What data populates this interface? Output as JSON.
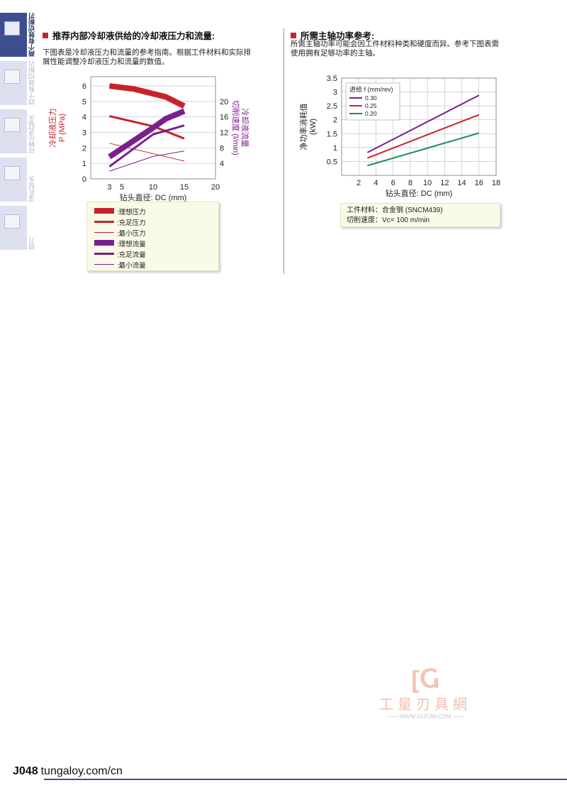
{
  "sidebar": {
    "tabs": [
      {
        "label": "两个有效切削刃钻头",
        "active": true
      },
      {
        "label": "四个有效切削刃钻头",
        "active": false
      },
      {
        "label": "可转位式钻头",
        "active": false
      },
      {
        "label": "深孔钻头",
        "active": false
      },
      {
        "label": "铰刀",
        "active": false
      }
    ]
  },
  "left_section": {
    "title": "推荐内部冷却液供给的冷却液压力和流量:",
    "desc_line1": "下图表是冷却液压力和流量的参考指南。根据工件材料和实际排",
    "desc_line2": "屑性能调整冷却液压力和流量的数值。"
  },
  "right_section": {
    "title": "所需主轴功率参考:",
    "desc_line1": "所需主轴功率可能会因工件材料种类和硬度而异。参考下图表需",
    "desc_line2": "使用拥有足够功率的主轴。",
    "note_line1": "工件材料：合金钢 (SNCM439)",
    "note_line2": "切削速度：Vc= 100 m/min"
  },
  "colors": {
    "red": "#c8232c",
    "purple": "#7b1f8c",
    "green": "#1f8a5a",
    "navy": "#3d4e8f",
    "grid": "#b9b9d2"
  },
  "chart_data": [
    {
      "type": "line",
      "xlabel": "钻头直径: DC (mm)",
      "ylabel_left": "冷却液压力\nP (MPa)",
      "ylabel_right": "冷却液流量\n切削速度 (l/min)",
      "x_ticks": [
        3,
        5,
        10,
        15,
        20
      ],
      "y_left_ticks": [
        0,
        1,
        2,
        3,
        4,
        5,
        6
      ],
      "y_right_ticks": [
        4,
        8,
        12,
        16,
        20
      ],
      "xlim": [
        0,
        20
      ],
      "ylim_left": [
        0,
        6.6
      ],
      "ylim_right": [
        0,
        26.4
      ],
      "series": [
        {
          "name": ":理想压力",
          "axis": "left",
          "weight": "thick",
          "color": "#c8232c",
          "x": [
            3,
            7,
            10,
            12,
            15
          ],
          "y": [
            6.0,
            5.8,
            5.5,
            5.3,
            4.7
          ]
        },
        {
          "name": ":充足压力",
          "axis": "left",
          "weight": "medium",
          "color": "#c8232c",
          "x": [
            3,
            10,
            15
          ],
          "y": [
            4.05,
            3.4,
            2.6
          ]
        },
        {
          "name": ":最小压力",
          "axis": "left",
          "weight": "thin",
          "color": "#c8232c",
          "x": [
            3,
            15
          ],
          "y": [
            2.3,
            1.15
          ]
        },
        {
          "name": ":理想流量",
          "axis": "right",
          "weight": "thick",
          "color": "#7b1f8c",
          "x": [
            3,
            10,
            12,
            15
          ],
          "y": [
            5.7,
            13.2,
            15.5,
            17.5
          ]
        },
        {
          "name": ":充足流量",
          "axis": "right",
          "weight": "medium",
          "color": "#7b1f8c",
          "x": [
            3,
            10,
            15
          ],
          "y": [
            3.2,
            11.5,
            13.8
          ]
        },
        {
          "name": ":最小流量",
          "axis": "right",
          "weight": "thin",
          "color": "#7b1f8c",
          "x": [
            3,
            10,
            15
          ],
          "y": [
            2.0,
            5.8,
            7.2
          ]
        }
      ]
    },
    {
      "type": "line",
      "xlabel": "钻头直径: DC (mm)",
      "ylabel": "净功率消耗值\n(kW)",
      "x_ticks": [
        2,
        4,
        6,
        8,
        10,
        12,
        14,
        16,
        18
      ],
      "y_ticks": [
        0.5,
        1,
        1.5,
        2,
        2.5,
        3,
        3.5
      ],
      "xlim": [
        0,
        18
      ],
      "ylim": [
        0,
        3.5
      ],
      "legend_title": "进给 f (mm/rev)",
      "legend_position": "top-left",
      "grid": true,
      "series": [
        {
          "name": "0.30",
          "color": "#7b1f8c",
          "x": [
            3,
            16
          ],
          "y": [
            0.82,
            2.88
          ]
        },
        {
          "name": "0.25",
          "color": "#c8232c",
          "x": [
            3,
            16
          ],
          "y": [
            0.62,
            2.18
          ]
        },
        {
          "name": "0.20",
          "color": "#1f8a5a",
          "x": [
            3,
            16
          ],
          "y": [
            0.35,
            1.52
          ]
        }
      ]
    }
  ],
  "watermark": {
    "mark": "[Ⴚ",
    "name": "工量刃具網",
    "url": "—— WWW.GLRJW.COM ——"
  },
  "footer": {
    "page_code": "J048",
    "site": "tungaloy.com/cn"
  }
}
